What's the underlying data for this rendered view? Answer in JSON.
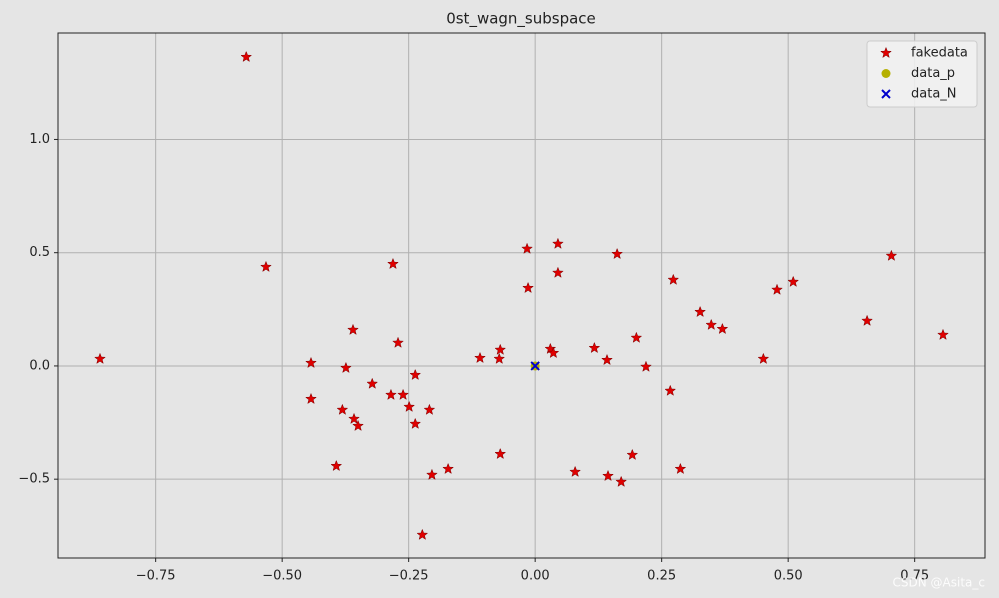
{
  "chart_data": {
    "type": "scatter",
    "title": "0st_wagn_subspace",
    "xlim": [
      -0.943,
      0.889
    ],
    "ylim": [
      -0.848,
      1.47
    ],
    "xticks": [
      {
        "value": -0.75,
        "label": "−0.75"
      },
      {
        "value": -0.5,
        "label": "−0.50"
      },
      {
        "value": -0.25,
        "label": "−0.25"
      },
      {
        "value": 0,
        "label": "0.00"
      },
      {
        "value": 0.25,
        "label": "0.25"
      },
      {
        "value": 0.5,
        "label": "0.50"
      },
      {
        "value": 0.75,
        "label": "0.75"
      }
    ],
    "yticks": [
      {
        "value": -0.5,
        "label": "−0.5"
      },
      {
        "value": 0,
        "label": "0.0"
      },
      {
        "value": 0.5,
        "label": "0.5"
      },
      {
        "value": 1,
        "label": "1.0"
      }
    ],
    "grid": true,
    "legend": "upper right",
    "series": [
      {
        "name": "fakedata",
        "color": "#e00000",
        "marker": "star",
        "x": [
          -0.571,
          -0.532,
          -0.86,
          -0.281,
          -0.36,
          -0.271,
          -0.443,
          -0.374,
          -0.443,
          -0.322,
          -0.237,
          -0.285,
          -0.261,
          -0.249,
          -0.381,
          -0.209,
          -0.358,
          -0.35,
          -0.237,
          -0.393,
          -0.172,
          -0.204,
          -0.223,
          -0.016,
          0.045,
          0.045,
          -0.014,
          0.162,
          -0.109,
          -0.069,
          -0.071,
          0.03,
          0.036,
          -0.069,
          0.117,
          0.142,
          0.2,
          0.219,
          0.079,
          0.144,
          0.17,
          0.192,
          0.287,
          0.267,
          0.273,
          0.326,
          0.348,
          0.37,
          0.451,
          0.478,
          0.51,
          0.656,
          0.704,
          0.806
        ],
        "values": [
          1.364,
          0.437,
          0.031,
          0.45,
          0.159,
          0.102,
          0.013,
          -0.009,
          -0.146,
          -0.079,
          -0.04,
          -0.128,
          -0.128,
          -0.181,
          -0.194,
          -0.194,
          -0.234,
          -0.265,
          -0.256,
          -0.442,
          -0.455,
          -0.481,
          -0.746,
          0.517,
          0.539,
          0.411,
          0.344,
          0.494,
          0.035,
          0.071,
          0.031,
          0.075,
          0.057,
          -0.389,
          0.079,
          0.026,
          0.124,
          -0.004,
          -0.468,
          -0.486,
          -0.512,
          -0.393,
          -0.455,
          -0.11,
          0.38,
          0.238,
          0.181,
          0.163,
          0.031,
          0.336,
          0.371,
          0.199,
          0.486,
          0.137
        ]
      },
      {
        "name": "data_p",
        "color": "#b5b000",
        "marker": "circle",
        "x": [
          0
        ],
        "values": [
          0
        ]
      },
      {
        "name": "data_N",
        "color": "#0000cc",
        "marker": "x",
        "x": [
          0
        ],
        "values": [
          0
        ]
      }
    ],
    "watermark": "CSDN @Asita_c"
  }
}
